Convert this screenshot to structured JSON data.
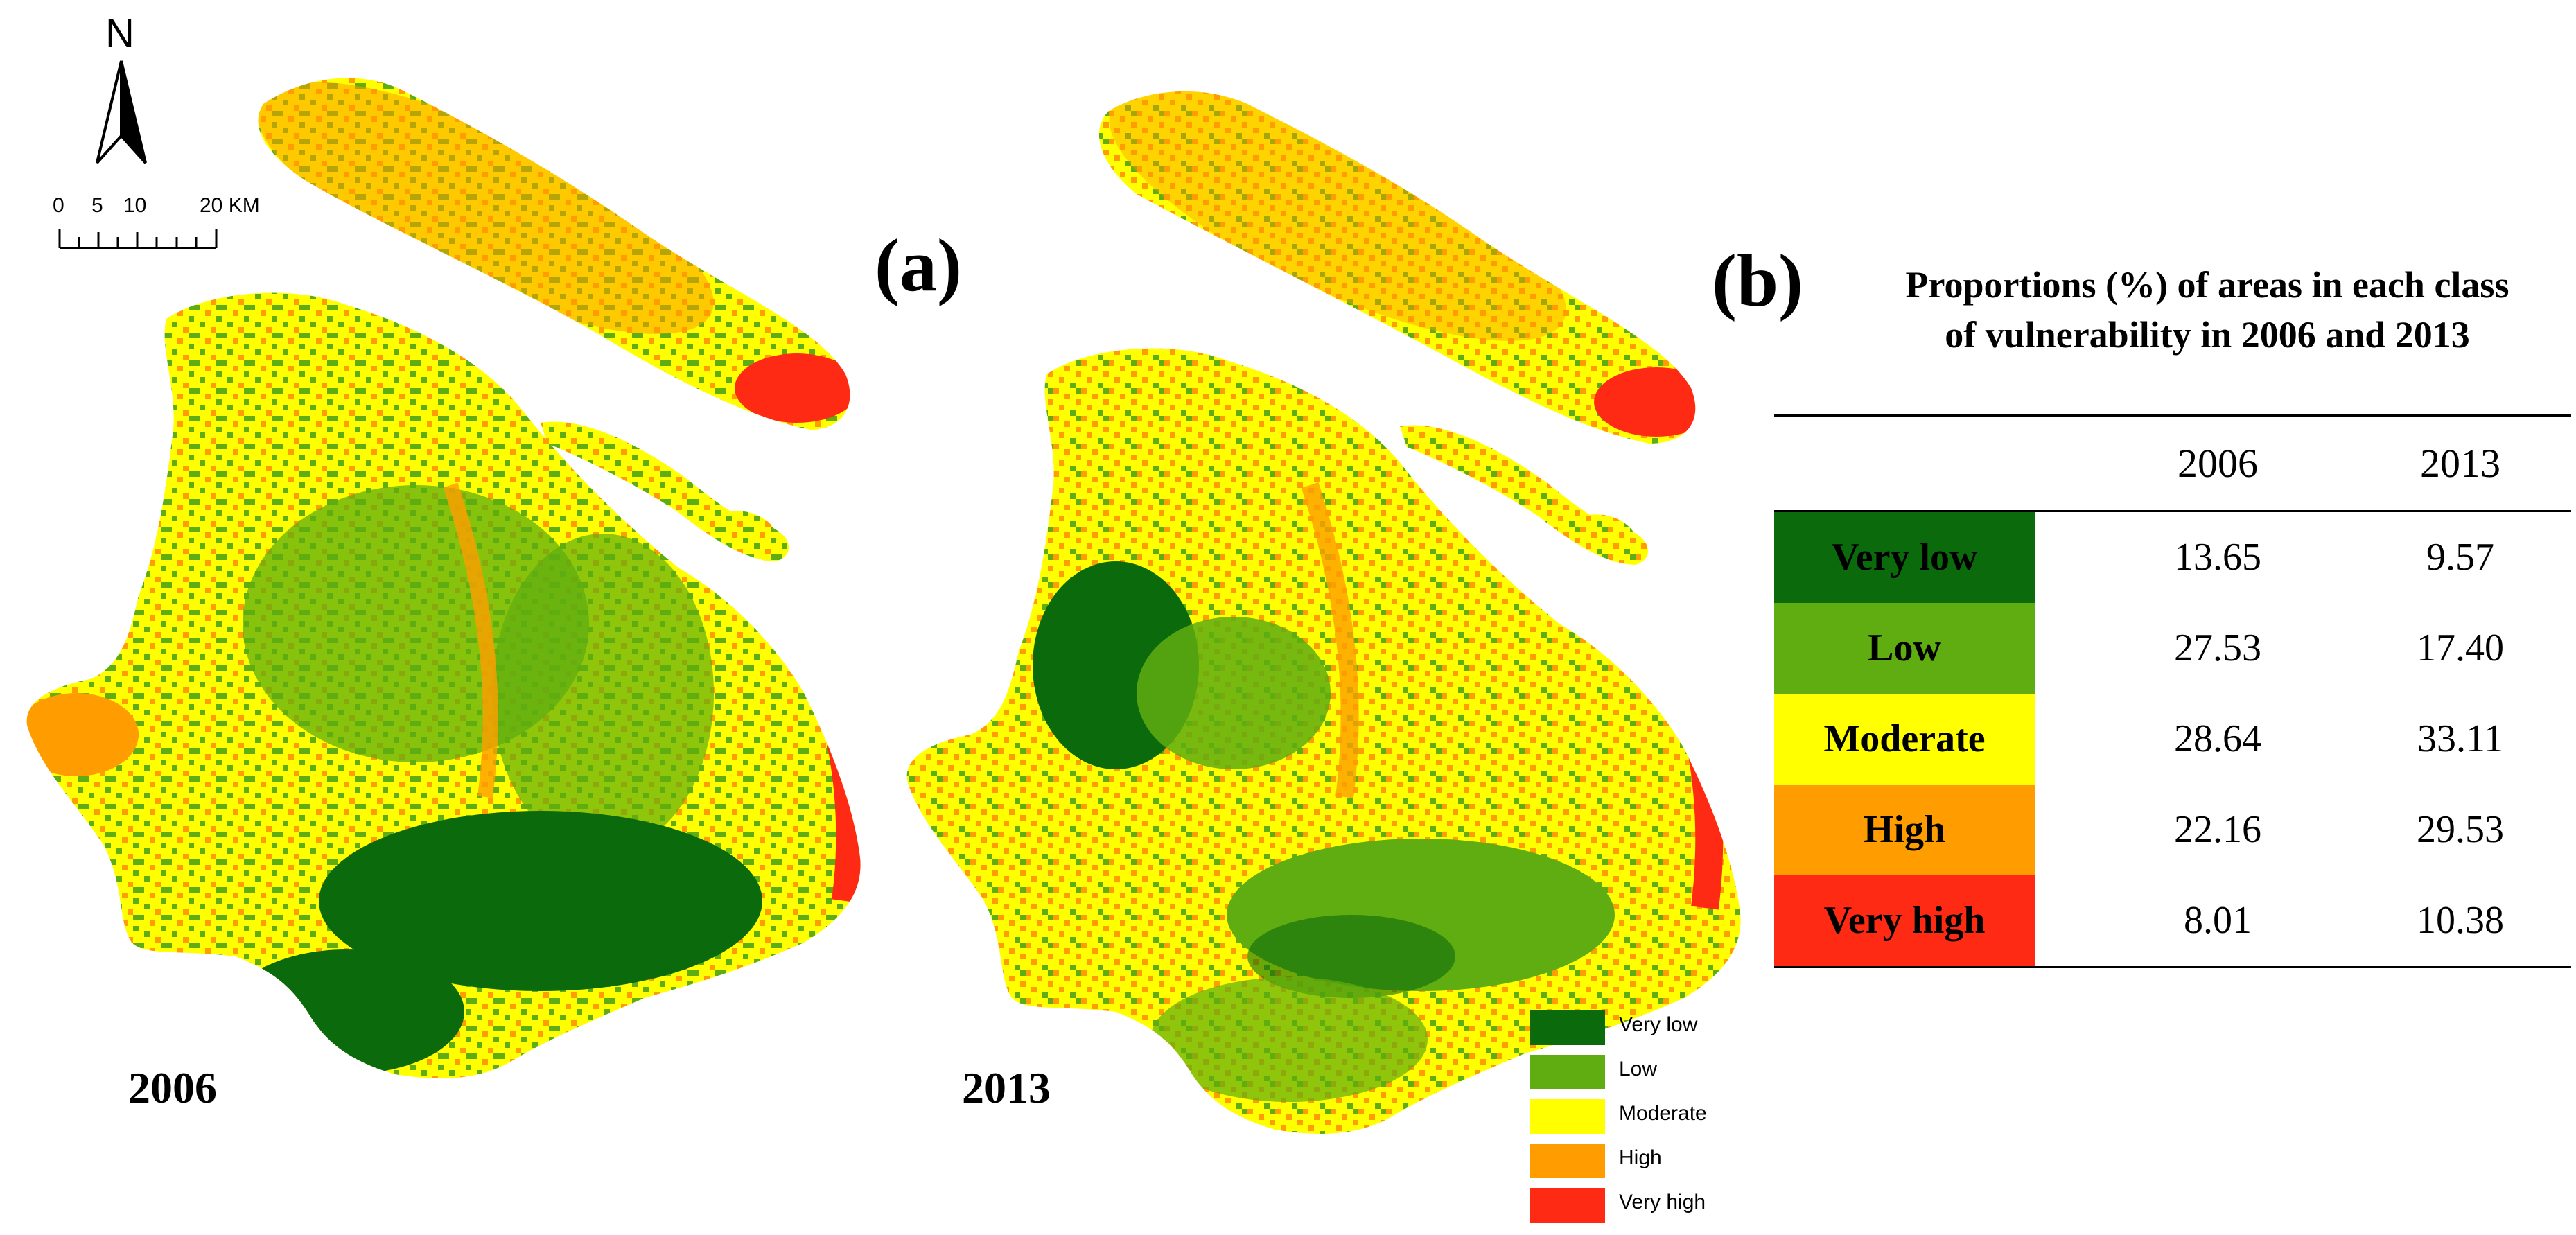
{
  "panel_labels": {
    "a": "(a)",
    "b": "(b)"
  },
  "map_years": {
    "left": "2006",
    "right": "2013"
  },
  "north_arrow": {
    "letter": "N",
    "icon": "north-arrow-icon"
  },
  "scale_bar": {
    "ticks": [
      "0",
      "5",
      "10",
      "20 KM"
    ]
  },
  "classes": [
    {
      "name": "Very low",
      "color": "#0b6a0b"
    },
    {
      "name": "Low",
      "color": "#5fad10"
    },
    {
      "name": "Moderate",
      "color": "#ffff00"
    },
    {
      "name": "High",
      "color": "#ff9d00"
    },
    {
      "name": "Very high",
      "color": "#ff2a14"
    }
  ],
  "table": {
    "title_line1": "Proportions (%) of areas in each class",
    "title_line2": "of vulnerability in 2006 and 2013",
    "columns": [
      "",
      "2006",
      "2013"
    ],
    "rows": [
      {
        "class": "Very low",
        "v2006": "13.65",
        "v2013": "9.57"
      },
      {
        "class": "Low",
        "v2006": "27.53",
        "v2013": "17.40"
      },
      {
        "class": "Moderate",
        "v2006": "28.64",
        "v2013": "33.11"
      },
      {
        "class": "High",
        "v2006": "22.16",
        "v2013": "29.53"
      },
      {
        "class": "Very high",
        "v2006": "8.01",
        "v2013": "10.38"
      }
    ]
  },
  "legend": {
    "items": [
      "Very low",
      "Low",
      "Moderate",
      "High",
      "Very high"
    ]
  }
}
